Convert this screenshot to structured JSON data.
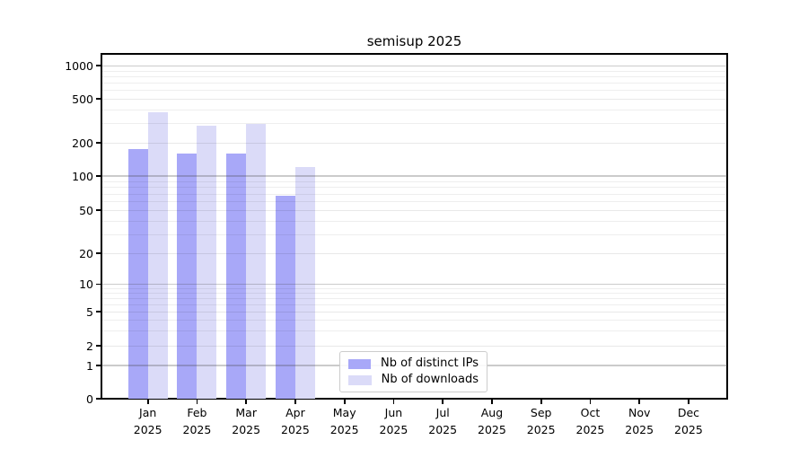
{
  "chart_data": {
    "type": "bar",
    "title": "semisup 2025",
    "categories": [
      "Jan",
      "Feb",
      "Mar",
      "Apr",
      "May",
      "Jun",
      "Jul",
      "Aug",
      "Sep",
      "Oct",
      "Nov",
      "Dec"
    ],
    "year_label": "2025",
    "series": [
      {
        "name": "Nb of distinct IPs",
        "color": "#a8a8f8",
        "values": [
          175,
          160,
          160,
          67,
          null,
          null,
          null,
          null,
          null,
          null,
          null,
          null
        ]
      },
      {
        "name": "Nb of downloads",
        "color": "#dbdbf8",
        "values": [
          380,
          285,
          300,
          120,
          null,
          null,
          null,
          null,
          null,
          null,
          null,
          null
        ]
      }
    ],
    "xlabel": "",
    "ylabel": "",
    "yscale": "symlog",
    "ylim": [
      0,
      1300
    ],
    "ytick_values": [
      0,
      1,
      2,
      5,
      10,
      20,
      50,
      100,
      200,
      500,
      1000
    ],
    "ytick_labels": [
      "0",
      "1",
      "2",
      "5",
      "10",
      "20",
      "50",
      "100",
      "200",
      "500",
      "1000"
    ],
    "grid": true,
    "legend_position": "lower center"
  }
}
